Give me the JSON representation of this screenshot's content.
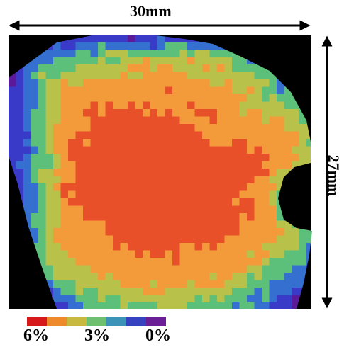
{
  "figure": {
    "width_label": "30mm",
    "height_label": "27mm"
  },
  "legend": {
    "colors": [
      "#d7191c",
      "#ef8a2a",
      "#c7b93f",
      "#6cc070",
      "#3b93b8",
      "#3643c0",
      "#6a1f96"
    ],
    "labels": [
      "6%",
      "3%",
      "0%"
    ]
  },
  "heatmap": {
    "background_color": "#000000",
    "palette": {
      "high": "#e8502a",
      "mid_high": "#f39a3a",
      "mid": "#b8c24a",
      "mid_low": "#5cbf7a",
      "low": "#3570d0",
      "very_low": "#3a3ac8",
      "zero": "#5a1a9a"
    }
  }
}
